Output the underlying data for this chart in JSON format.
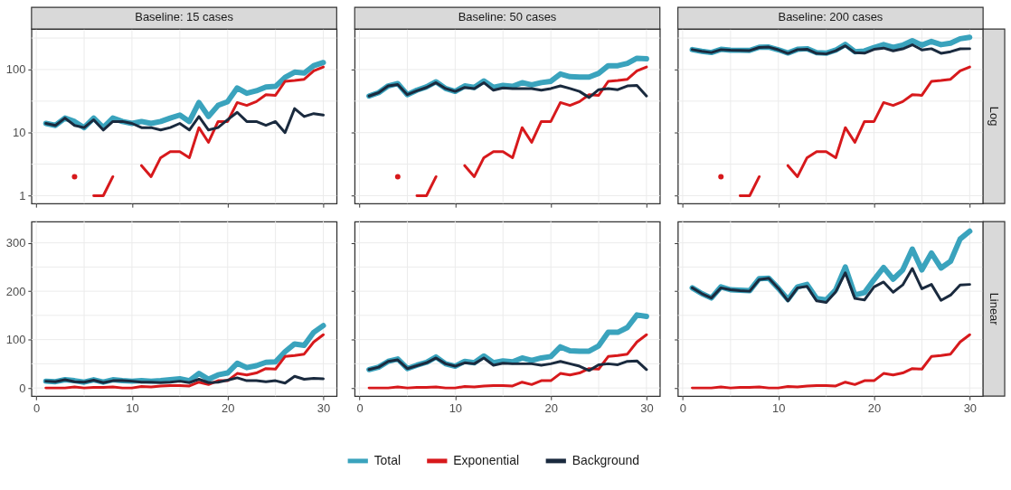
{
  "chart_data": [
    {
      "type": "line",
      "title": "Baseline: 15 cases",
      "log": true,
      "grid": true,
      "legend": "bottom",
      "tick_labels": "y",
      "x": [
        1,
        2,
        3,
        4,
        5,
        6,
        7,
        8,
        9,
        10,
        11,
        12,
        13,
        14,
        15,
        16,
        17,
        18,
        19,
        20,
        21,
        22,
        23,
        24,
        25,
        26,
        27,
        28,
        29,
        30
      ],
      "xlim": [
        -0.5,
        31.4
      ],
      "xticks": [
        0,
        {
          "value": 5,
          "label": null
        },
        10,
        {
          "value": 15,
          "label": null
        },
        20,
        {
          "value": 25,
          "label": null
        },
        30
      ],
      "ylim": [
        0.75,
        440
      ],
      "yticks": [
        1,
        {
          "value": 3.16,
          "label": null
        },
        10,
        {
          "value": 31.6,
          "label": null
        },
        100,
        {
          "value": 316,
          "label": null
        }
      ],
      "series": [
        {
          "name": "Total",
          "color": "#3aa3bd",
          "values": [
            14,
            13,
            17,
            15,
            12,
            17,
            12,
            17,
            15,
            14,
            15,
            14,
            15,
            17,
            19,
            15,
            30,
            18,
            27,
            31,
            51,
            42,
            46,
            53,
            54,
            75,
            91,
            88,
            115,
            129
          ]
        },
        {
          "name": "Exponential",
          "color": "#d7191c",
          "values": [
            null,
            null,
            null,
            2,
            null,
            1,
            1,
            2,
            null,
            null,
            3,
            2,
            4,
            5,
            5,
            4,
            12,
            7,
            15,
            15,
            30,
            27,
            31,
            40,
            39,
            65,
            67,
            70,
            95,
            110
          ]
        },
        {
          "name": "Background",
          "color": "#1a2a3e",
          "values": [
            14,
            13,
            17,
            13,
            12,
            16,
            11,
            15,
            15,
            14,
            12,
            12,
            11,
            12,
            14,
            11,
            18,
            11,
            12,
            16,
            21,
            15,
            15,
            13,
            15,
            10,
            24,
            18,
            20,
            19
          ]
        }
      ]
    },
    {
      "type": "line",
      "title": "Baseline: 50 cases",
      "log": true,
      "grid": true,
      "tick_labels": false,
      "x": [
        1,
        2,
        3,
        4,
        5,
        6,
        7,
        8,
        9,
        10,
        11,
        12,
        13,
        14,
        15,
        16,
        17,
        18,
        19,
        20,
        21,
        22,
        23,
        24,
        25,
        26,
        27,
        28,
        29,
        30
      ],
      "xlim": [
        -0.5,
        31.4
      ],
      "xticks": [
        0,
        {
          "value": 5,
          "label": null
        },
        10,
        {
          "value": 15,
          "label": null
        },
        20,
        {
          "value": 25,
          "label": null
        },
        30
      ],
      "ylim": [
        0.75,
        440
      ],
      "yticks": [
        1,
        {
          "value": 3.16,
          "label": null
        },
        10,
        {
          "value": 31.6,
          "label": null
        },
        100,
        {
          "value": 316,
          "label": null
        }
      ],
      "series": [
        {
          "name": "Total",
          "color": "#3aa3bd",
          "values": [
            38,
            43,
            55,
            60,
            40,
            47,
            53,
            64,
            50,
            45,
            55,
            52,
            66,
            52,
            56,
            54,
            62,
            57,
            62,
            65,
            85,
            77,
            76,
            76,
            87,
            115,
            115,
            125,
            151,
            148
          ]
        },
        {
          "name": "Exponential",
          "color": "#d7191c",
          "values": [
            null,
            null,
            null,
            2,
            null,
            1,
            1,
            2,
            null,
            null,
            3,
            2,
            4,
            5,
            5,
            4,
            12,
            7,
            15,
            15,
            30,
            27,
            31,
            40,
            39,
            65,
            67,
            70,
            95,
            110
          ]
        },
        {
          "name": "Background",
          "color": "#1a2a3e",
          "values": [
            38,
            43,
            55,
            58,
            40,
            46,
            52,
            62,
            50,
            45,
            52,
            50,
            62,
            47,
            51,
            50,
            50,
            50,
            47,
            50,
            55,
            50,
            45,
            36,
            48,
            50,
            48,
            55,
            56,
            38
          ]
        }
      ]
    },
    {
      "type": "line",
      "title": "Baseline: 200 cases",
      "annotations": [
        "Log"
      ],
      "log": true,
      "grid": true,
      "tick_labels": false,
      "x": [
        1,
        2,
        3,
        4,
        5,
        6,
        7,
        8,
        9,
        10,
        11,
        12,
        13,
        14,
        15,
        16,
        17,
        18,
        19,
        20,
        21,
        22,
        23,
        24,
        25,
        26,
        27,
        28,
        29,
        30
      ],
      "xlim": [
        -0.5,
        31.4
      ],
      "xticks": [
        0,
        {
          "value": 5,
          "label": null
        },
        10,
        {
          "value": 15,
          "label": null
        },
        20,
        {
          "value": 25,
          "label": null
        },
        30
      ],
      "ylim": [
        0.75,
        440
      ],
      "yticks": [
        1,
        {
          "value": 3.16,
          "label": null
        },
        10,
        {
          "value": 31.6,
          "label": null
        },
        100,
        {
          "value": 316,
          "label": null
        }
      ],
      "series": [
        {
          "name": "Total",
          "color": "#3aa3bd",
          "values": [
            207,
            195,
            186,
            209,
            203,
            202,
            201,
            226,
            227,
            206,
            183,
            209,
            214,
            185,
            182,
            203,
            250,
            192,
            197,
            224,
            249,
            225,
            244,
            287,
            244,
            279,
            248,
            262,
            308,
            324
          ]
        },
        {
          "name": "Exponential",
          "color": "#d7191c",
          "values": [
            null,
            null,
            null,
            2,
            null,
            1,
            1,
            2,
            null,
            null,
            3,
            2,
            4,
            5,
            5,
            4,
            12,
            7,
            15,
            15,
            30,
            27,
            31,
            40,
            39,
            65,
            67,
            70,
            95,
            110
          ]
        },
        {
          "name": "Background",
          "color": "#1a2a3e",
          "values": [
            207,
            195,
            186,
            207,
            203,
            201,
            200,
            224,
            227,
            206,
            180,
            207,
            210,
            180,
            177,
            199,
            238,
            185,
            182,
            209,
            219,
            198,
            213,
            247,
            205,
            214,
            181,
            192,
            213,
            214
          ]
        }
      ]
    },
    {
      "type": "line",
      "grid": true,
      "x": [
        1,
        2,
        3,
        4,
        5,
        6,
        7,
        8,
        9,
        10,
        11,
        12,
        13,
        14,
        15,
        16,
        17,
        18,
        19,
        20,
        21,
        22,
        23,
        24,
        25,
        26,
        27,
        28,
        29,
        30
      ],
      "xlim": [
        -0.5,
        31.4
      ],
      "xticks": [
        0,
        {
          "value": 5,
          "label": null
        },
        10,
        {
          "value": 15,
          "label": null
        },
        20,
        {
          "value": 25,
          "label": null
        },
        30
      ],
      "ylim": [
        -17,
        344
      ],
      "yticks": [
        0,
        {
          "value": 50,
          "label": null
        },
        100,
        {
          "value": 150,
          "label": null
        },
        200,
        {
          "value": 250,
          "label": null
        },
        300
      ],
      "series": [
        {
          "name": "Total",
          "color": "#3aa3bd",
          "values": [
            14,
            13,
            17,
            15,
            12,
            17,
            12,
            17,
            15,
            14,
            15,
            14,
            15,
            17,
            19,
            15,
            30,
            18,
            27,
            31,
            51,
            42,
            46,
            53,
            54,
            75,
            91,
            88,
            115,
            129
          ]
        },
        {
          "name": "Exponential",
          "color": "#d7191c",
          "values": [
            0,
            0,
            0,
            2,
            0,
            1,
            1,
            2,
            0,
            0,
            3,
            2,
            4,
            5,
            5,
            4,
            12,
            7,
            15,
            15,
            30,
            27,
            31,
            40,
            39,
            65,
            67,
            70,
            95,
            110
          ]
        },
        {
          "name": "Background",
          "color": "#1a2a3e",
          "values": [
            14,
            13,
            17,
            13,
            12,
            16,
            11,
            15,
            15,
            14,
            12,
            12,
            11,
            12,
            14,
            11,
            18,
            11,
            12,
            16,
            21,
            15,
            15,
            13,
            15,
            10,
            24,
            18,
            20,
            19
          ]
        }
      ]
    },
    {
      "type": "line",
      "grid": true,
      "tick_labels": "x",
      "x": [
        1,
        2,
        3,
        4,
        5,
        6,
        7,
        8,
        9,
        10,
        11,
        12,
        13,
        14,
        15,
        16,
        17,
        18,
        19,
        20,
        21,
        22,
        23,
        24,
        25,
        26,
        27,
        28,
        29,
        30
      ],
      "xlim": [
        -0.5,
        31.4
      ],
      "xticks": [
        0,
        {
          "value": 5,
          "label": null
        },
        10,
        {
          "value": 15,
          "label": null
        },
        20,
        {
          "value": 25,
          "label": null
        },
        30
      ],
      "ylim": [
        -17,
        344
      ],
      "yticks": [
        0,
        {
          "value": 50,
          "label": null
        },
        100,
        {
          "value": 150,
          "label": null
        },
        200,
        {
          "value": 250,
          "label": null
        },
        300
      ],
      "series": [
        {
          "name": "Total",
          "color": "#3aa3bd",
          "values": [
            38,
            43,
            55,
            60,
            40,
            47,
            53,
            64,
            50,
            45,
            55,
            52,
            66,
            52,
            56,
            54,
            62,
            57,
            62,
            65,
            85,
            77,
            76,
            76,
            87,
            115,
            115,
            125,
            151,
            148
          ]
        },
        {
          "name": "Exponential",
          "color": "#d7191c",
          "values": [
            0,
            0,
            0,
            2,
            0,
            1,
            1,
            2,
            0,
            0,
            3,
            2,
            4,
            5,
            5,
            4,
            12,
            7,
            15,
            15,
            30,
            27,
            31,
            40,
            39,
            65,
            67,
            70,
            95,
            110
          ]
        },
        {
          "name": "Background",
          "color": "#1a2a3e",
          "values": [
            38,
            43,
            55,
            58,
            40,
            46,
            52,
            62,
            50,
            45,
            52,
            50,
            62,
            47,
            51,
            50,
            50,
            50,
            47,
            50,
            55,
            50,
            45,
            36,
            48,
            50,
            48,
            55,
            56,
            38
          ]
        }
      ]
    },
    {
      "type": "line",
      "annotations": [
        "Linear"
      ],
      "grid": true,
      "tick_labels": "x",
      "x": [
        1,
        2,
        3,
        4,
        5,
        6,
        7,
        8,
        9,
        10,
        11,
        12,
        13,
        14,
        15,
        16,
        17,
        18,
        19,
        20,
        21,
        22,
        23,
        24,
        25,
        26,
        27,
        28,
        29,
        30
      ],
      "xlim": [
        -0.5,
        31.4
      ],
      "xticks": [
        0,
        {
          "value": 5,
          "label": null
        },
        10,
        {
          "value": 15,
          "label": null
        },
        20,
        {
          "value": 25,
          "label": null
        },
        30
      ],
      "ylim": [
        -17,
        344
      ],
      "yticks": [
        0,
        {
          "value": 50,
          "label": null
        },
        100,
        {
          "value": 150,
          "label": null
        },
        200,
        {
          "value": 250,
          "label": null
        },
        300
      ],
      "series": [
        {
          "name": "Total",
          "color": "#3aa3bd",
          "values": [
            207,
            195,
            186,
            209,
            203,
            202,
            201,
            226,
            227,
            206,
            183,
            209,
            214,
            185,
            182,
            203,
            250,
            192,
            197,
            224,
            249,
            225,
            244,
            287,
            244,
            279,
            248,
            262,
            308,
            324
          ]
        },
        {
          "name": "Exponential",
          "color": "#d7191c",
          "values": [
            0,
            0,
            0,
            2,
            0,
            1,
            1,
            2,
            0,
            0,
            3,
            2,
            4,
            5,
            5,
            4,
            12,
            7,
            15,
            15,
            30,
            27,
            31,
            40,
            39,
            65,
            67,
            70,
            95,
            110
          ]
        },
        {
          "name": "Background",
          "color": "#1a2a3e",
          "values": [
            207,
            195,
            186,
            207,
            203,
            201,
            200,
            224,
            227,
            206,
            180,
            207,
            210,
            180,
            177,
            199,
            238,
            185,
            182,
            209,
            219,
            198,
            213,
            247,
            205,
            214,
            181,
            192,
            213,
            214
          ]
        }
      ]
    }
  ]
}
